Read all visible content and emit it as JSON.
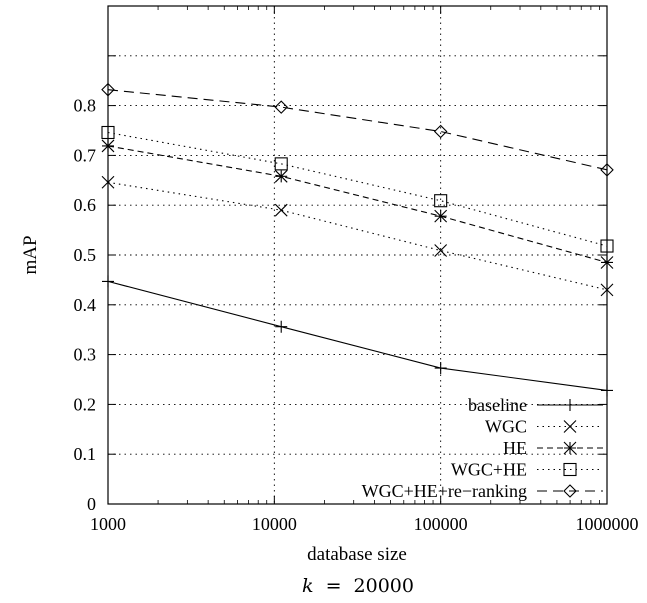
{
  "chart_data": {
    "type": "line",
    "x_scale": "log",
    "x": [
      1000,
      11000,
      100000,
      1000000
    ],
    "xticks": [
      "1000",
      "10000",
      "100000",
      "1000000"
    ],
    "xtick_values": [
      1000,
      10000,
      100000,
      1000000
    ],
    "xlabel": "database size",
    "ylabel": "mAP",
    "ylim": [
      0,
      1.0
    ],
    "yticks": [
      "0",
      "0.1",
      "0.2",
      "0.3",
      "0.4",
      "0.5",
      "0.6",
      "0.7",
      "0.8"
    ],
    "ytick_values": [
      0,
      0.1,
      0.2,
      0.3,
      0.4,
      0.5,
      0.6,
      0.7,
      0.8
    ],
    "grid": true,
    "legend_position": "bottom-right",
    "caption": {
      "var": "k",
      "eq": "=",
      "value": "20000"
    },
    "series": [
      {
        "name": "baseline",
        "marker": "plus",
        "dash": "solid",
        "values": [
          0.447,
          0.356,
          0.273,
          0.228
        ]
      },
      {
        "name": "WGC",
        "marker": "x",
        "dash": "dotted",
        "values": [
          0.646,
          0.59,
          0.509,
          0.43
        ]
      },
      {
        "name": "HE",
        "marker": "asterisk",
        "dash": "dashed",
        "values": [
          0.719,
          0.658,
          0.578,
          0.485
        ]
      },
      {
        "name": "WGC+HE",
        "marker": "square",
        "dash": "dotted",
        "values": [
          0.746,
          0.683,
          0.609,
          0.518
        ]
      },
      {
        "name": "WGC+HE+re−ranking",
        "marker": "diamond",
        "dash": "longdash",
        "values": [
          0.832,
          0.797,
          0.748,
          0.671
        ]
      }
    ]
  }
}
